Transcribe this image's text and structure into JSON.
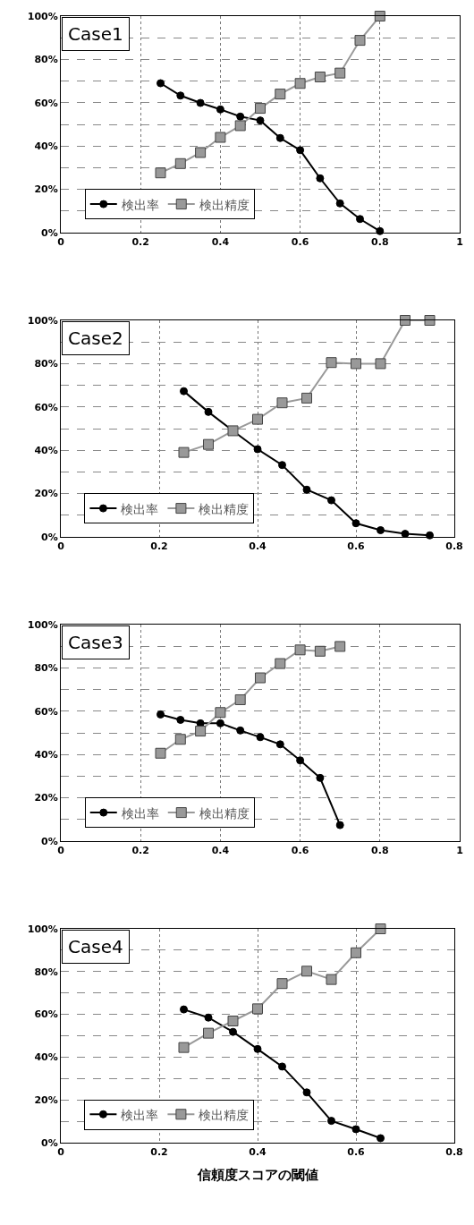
{
  "chart_data": [
    {
      "type": "line",
      "title": "Case1",
      "x": [
        0.25,
        0.3,
        0.35,
        0.4,
        0.45,
        0.5,
        0.55,
        0.6,
        0.65,
        0.7,
        0.75,
        0.8
      ],
      "series": [
        {
          "name": "検出率",
          "color": "#000000",
          "marker": "circle",
          "values": [
            69,
            63.3,
            59.9,
            56.9,
            53.6,
            51.8,
            43.7,
            38.1,
            25.1,
            13.5,
            6.3,
            0.7
          ]
        },
        {
          "name": "検出精度",
          "color": "#999999",
          "marker": "square",
          "values": [
            27.6,
            31.9,
            37,
            44,
            49.4,
            57.4,
            64,
            68.9,
            71.9,
            73.7,
            88.8,
            100
          ]
        }
      ],
      "xlim": [
        0,
        1
      ],
      "xticks": [
        0,
        0.2,
        0.4,
        0.6,
        0.8,
        1
      ],
      "ylim": [
        0,
        100
      ],
      "yticks": [
        {
          "value": 0,
          "label": "0%"
        },
        {
          "value": 10,
          "label": null
        },
        {
          "value": 20,
          "label": "20%"
        },
        {
          "value": 30,
          "label": null
        },
        {
          "value": 40,
          "label": "40%"
        },
        {
          "value": 50,
          "label": null
        },
        {
          "value": 60,
          "label": "60%"
        },
        {
          "value": 70,
          "label": null
        },
        {
          "value": 80,
          "label": "80%"
        },
        {
          "value": 90,
          "label": null
        },
        {
          "value": 100,
          "label": "100%"
        }
      ],
      "grid": true,
      "legend": "bottom left",
      "line_style": "solid"
    },
    {
      "type": "line",
      "title": "Case2",
      "x": [
        0.25,
        0.3,
        0.35,
        0.4,
        0.45,
        0.5,
        0.55,
        0.6,
        0.65,
        0.7,
        0.75
      ],
      "series": [
        {
          "name": "検出率",
          "color": "#000000",
          "marker": "circle",
          "values": [
            67.3,
            57.7,
            49,
            40.5,
            33.2,
            21.8,
            16.9,
            6.3,
            3.1,
            1.4,
            0.7
          ]
        },
        {
          "name": "検出精度",
          "color": "#999999",
          "marker": "square",
          "values": [
            39,
            42.7,
            49,
            54.3,
            61.9,
            64.1,
            80.5,
            80,
            80,
            100,
            100
          ]
        }
      ],
      "xlim": [
        0,
        0.8
      ],
      "xticks": [
        0,
        0.2,
        0.4,
        0.6,
        0.8
      ],
      "ylim": [
        0,
        100
      ],
      "yticks": [
        {
          "value": 0,
          "label": "0%"
        },
        {
          "value": 10,
          "label": null
        },
        {
          "value": 20,
          "label": "20%"
        },
        {
          "value": 30,
          "label": null
        },
        {
          "value": 40,
          "label": "40%"
        },
        {
          "value": 50,
          "label": null
        },
        {
          "value": 60,
          "label": "60%"
        },
        {
          "value": 70,
          "label": null
        },
        {
          "value": 80,
          "label": "80%"
        },
        {
          "value": 90,
          "label": null
        },
        {
          "value": 100,
          "label": "100%"
        }
      ],
      "grid": true,
      "legend": "bottom left",
      "line_style": "solid"
    },
    {
      "type": "line",
      "title": "Case3",
      "x": [
        0.25,
        0.3,
        0.35,
        0.4,
        0.45,
        0.5,
        0.55,
        0.6,
        0.65,
        0.7
      ],
      "series": [
        {
          "name": "検出率",
          "color": "#000000",
          "marker": "circle",
          "values": [
            58.5,
            56,
            54.4,
            54.4,
            51.1,
            48,
            44.7,
            37.3,
            29.2,
            7.4
          ]
        },
        {
          "name": "検出精度",
          "color": "#999999",
          "marker": "square",
          "values": [
            40.6,
            47,
            50.8,
            59.4,
            65.3,
            75.4,
            82,
            88.3,
            87.7,
            89.9
          ]
        }
      ],
      "xlim": [
        0,
        1
      ],
      "xticks": [
        0,
        0.2,
        0.4,
        0.6,
        0.8,
        1
      ],
      "ylim": [
        0,
        100
      ],
      "yticks": [
        {
          "value": 0,
          "label": "0%"
        },
        {
          "value": 10,
          "label": null
        },
        {
          "value": 20,
          "label": "20%"
        },
        {
          "value": 30,
          "label": null
        },
        {
          "value": 40,
          "label": "40%"
        },
        {
          "value": 50,
          "label": null
        },
        {
          "value": 60,
          "label": "60%"
        },
        {
          "value": 70,
          "label": null
        },
        {
          "value": 80,
          "label": "80%"
        },
        {
          "value": 90,
          "label": null
        },
        {
          "value": 100,
          "label": "100%"
        }
      ],
      "grid": true,
      "legend": "bottom left",
      "line_style": "solid"
    },
    {
      "type": "line",
      "title": "Case4",
      "xlabel": "信頼度スコアの閾値",
      "x": [
        0.25,
        0.3,
        0.35,
        0.4,
        0.45,
        0.5,
        0.55,
        0.6,
        0.65
      ],
      "series": [
        {
          "name": "検出率",
          "color": "#000000",
          "marker": "circle",
          "values": [
            62.3,
            58.5,
            51.8,
            43.8,
            35.6,
            23.5,
            10.2,
            6.3,
            2.1
          ]
        },
        {
          "name": "検出精度",
          "color": "#999999",
          "marker": "square",
          "values": [
            44.5,
            51.2,
            56.9,
            62.6,
            74.4,
            80.2,
            76.3,
            88.8,
            100
          ]
        }
      ],
      "xlim": [
        0,
        0.8
      ],
      "xticks": [
        0,
        0.2,
        0.4,
        0.6,
        0.8
      ],
      "ylim": [
        0,
        100
      ],
      "yticks": [
        {
          "value": 0,
          "label": "0%"
        },
        {
          "value": 10,
          "label": null
        },
        {
          "value": 20,
          "label": "20%"
        },
        {
          "value": 30,
          "label": null
        },
        {
          "value": 40,
          "label": "40%"
        },
        {
          "value": 50,
          "label": null
        },
        {
          "value": 60,
          "label": "60%"
        },
        {
          "value": 70,
          "label": null
        },
        {
          "value": 80,
          "label": "80%"
        },
        {
          "value": 90,
          "label": null
        },
        {
          "value": 100,
          "label": "100%"
        }
      ],
      "grid": true,
      "legend": "bottom left",
      "line_style": "solid"
    }
  ]
}
